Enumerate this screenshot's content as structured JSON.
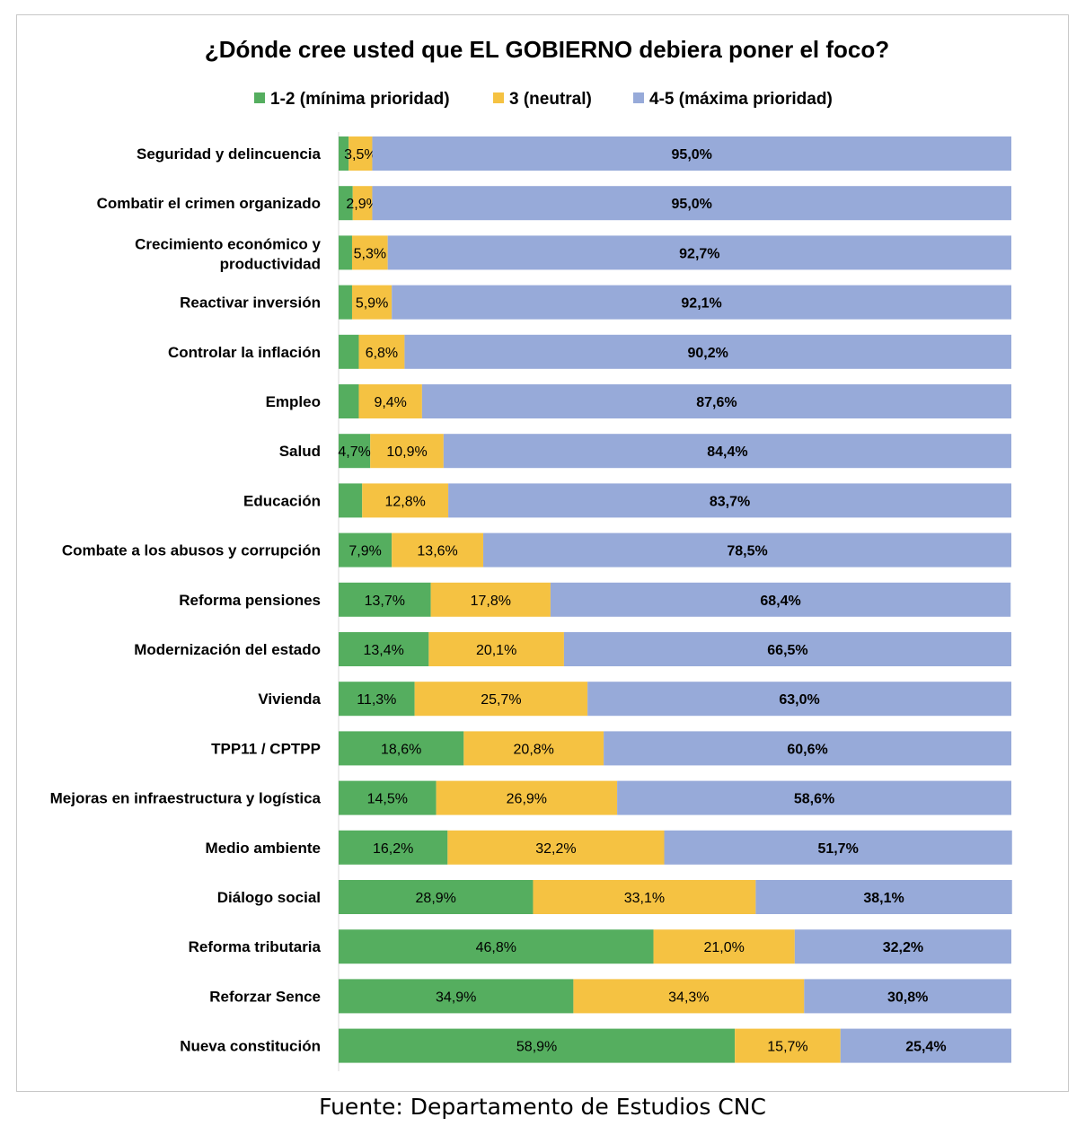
{
  "chart_data": {
    "type": "bar",
    "orientation": "horizontal",
    "stacked": true,
    "title": "¿Dónde cree usted que EL GOBIERNO debiera poner el foco?",
    "xlabel": "",
    "ylabel": "",
    "xlim": [
      0,
      100
    ],
    "grid": false,
    "legend_position": "top",
    "categories": [
      "Seguridad y delincuencia",
      "Combatir el crimen organizado",
      [
        "Crecimiento económico y",
        "productividad"
      ],
      "Reactivar inversión",
      "Controlar la inflación",
      "Empleo",
      "Salud",
      "Educación",
      "Combate a los abusos y corrupción",
      "Reforma pensiones",
      "Modernización del estado",
      "Vivienda",
      "TPP11 / CPTPP",
      "Mejoras en infraestructura y logística",
      "Medio ambiente",
      "Diálogo social",
      "Reforma tributaria",
      "Reforzar Sence",
      "Nueva constitución"
    ],
    "series": [
      {
        "name": "1-2 (mínima prioridad)",
        "color": "#55ae5f",
        "values": [
          1.5,
          2.1,
          2.0,
          2.0,
          3.0,
          3.0,
          4.7,
          3.5,
          7.9,
          13.7,
          13.4,
          11.3,
          18.6,
          14.5,
          16.2,
          28.9,
          46.8,
          34.9,
          58.9
        ],
        "labels": [
          "",
          "",
          "",
          "",
          "",
          "",
          "4,7%",
          "",
          "7,9%",
          "13,7%",
          "13,4%",
          "11,3%",
          "18,6%",
          "14,5%",
          "16,2%",
          "28,9%",
          "46,8%",
          "34,9%",
          "58,9%"
        ]
      },
      {
        "name": "3 (neutral)",
        "color": "#f5c242",
        "values": [
          3.5,
          2.9,
          5.3,
          5.9,
          6.8,
          9.4,
          10.9,
          12.8,
          13.6,
          17.8,
          20.1,
          25.7,
          20.8,
          26.9,
          32.2,
          33.1,
          21.0,
          34.3,
          15.7
        ],
        "labels": [
          "3,5%",
          "2,9%",
          "5,3%",
          "5,9%",
          "6,8%",
          "9,4%",
          "10,9%",
          "12,8%",
          "13,6%",
          "17,8%",
          "20,1%",
          "25,7%",
          "20,8%",
          "26,9%",
          "32,2%",
          "33,1%",
          "21,0%",
          "34,3%",
          "15,7%"
        ]
      },
      {
        "name": "4-5 (máxima prioridad)",
        "color": "#97aad9",
        "values": [
          95.0,
          95.0,
          92.7,
          92.1,
          90.2,
          87.6,
          84.4,
          83.7,
          78.5,
          68.4,
          66.5,
          63.0,
          60.6,
          58.6,
          51.7,
          38.1,
          32.2,
          30.8,
          25.4
        ],
        "labels": [
          "95,0%",
          "95,0%",
          "92,7%",
          "92,1%",
          "90,2%",
          "87,6%",
          "84,4%",
          "83,7%",
          "78,5%",
          "68,4%",
          "66,5%",
          "63,0%",
          "60,6%",
          "58,6%",
          "51,7%",
          "38,1%",
          "32,2%",
          "30,8%",
          "25,4%"
        ]
      }
    ]
  },
  "source": "Fuente: Departamento de Estudios CNC"
}
